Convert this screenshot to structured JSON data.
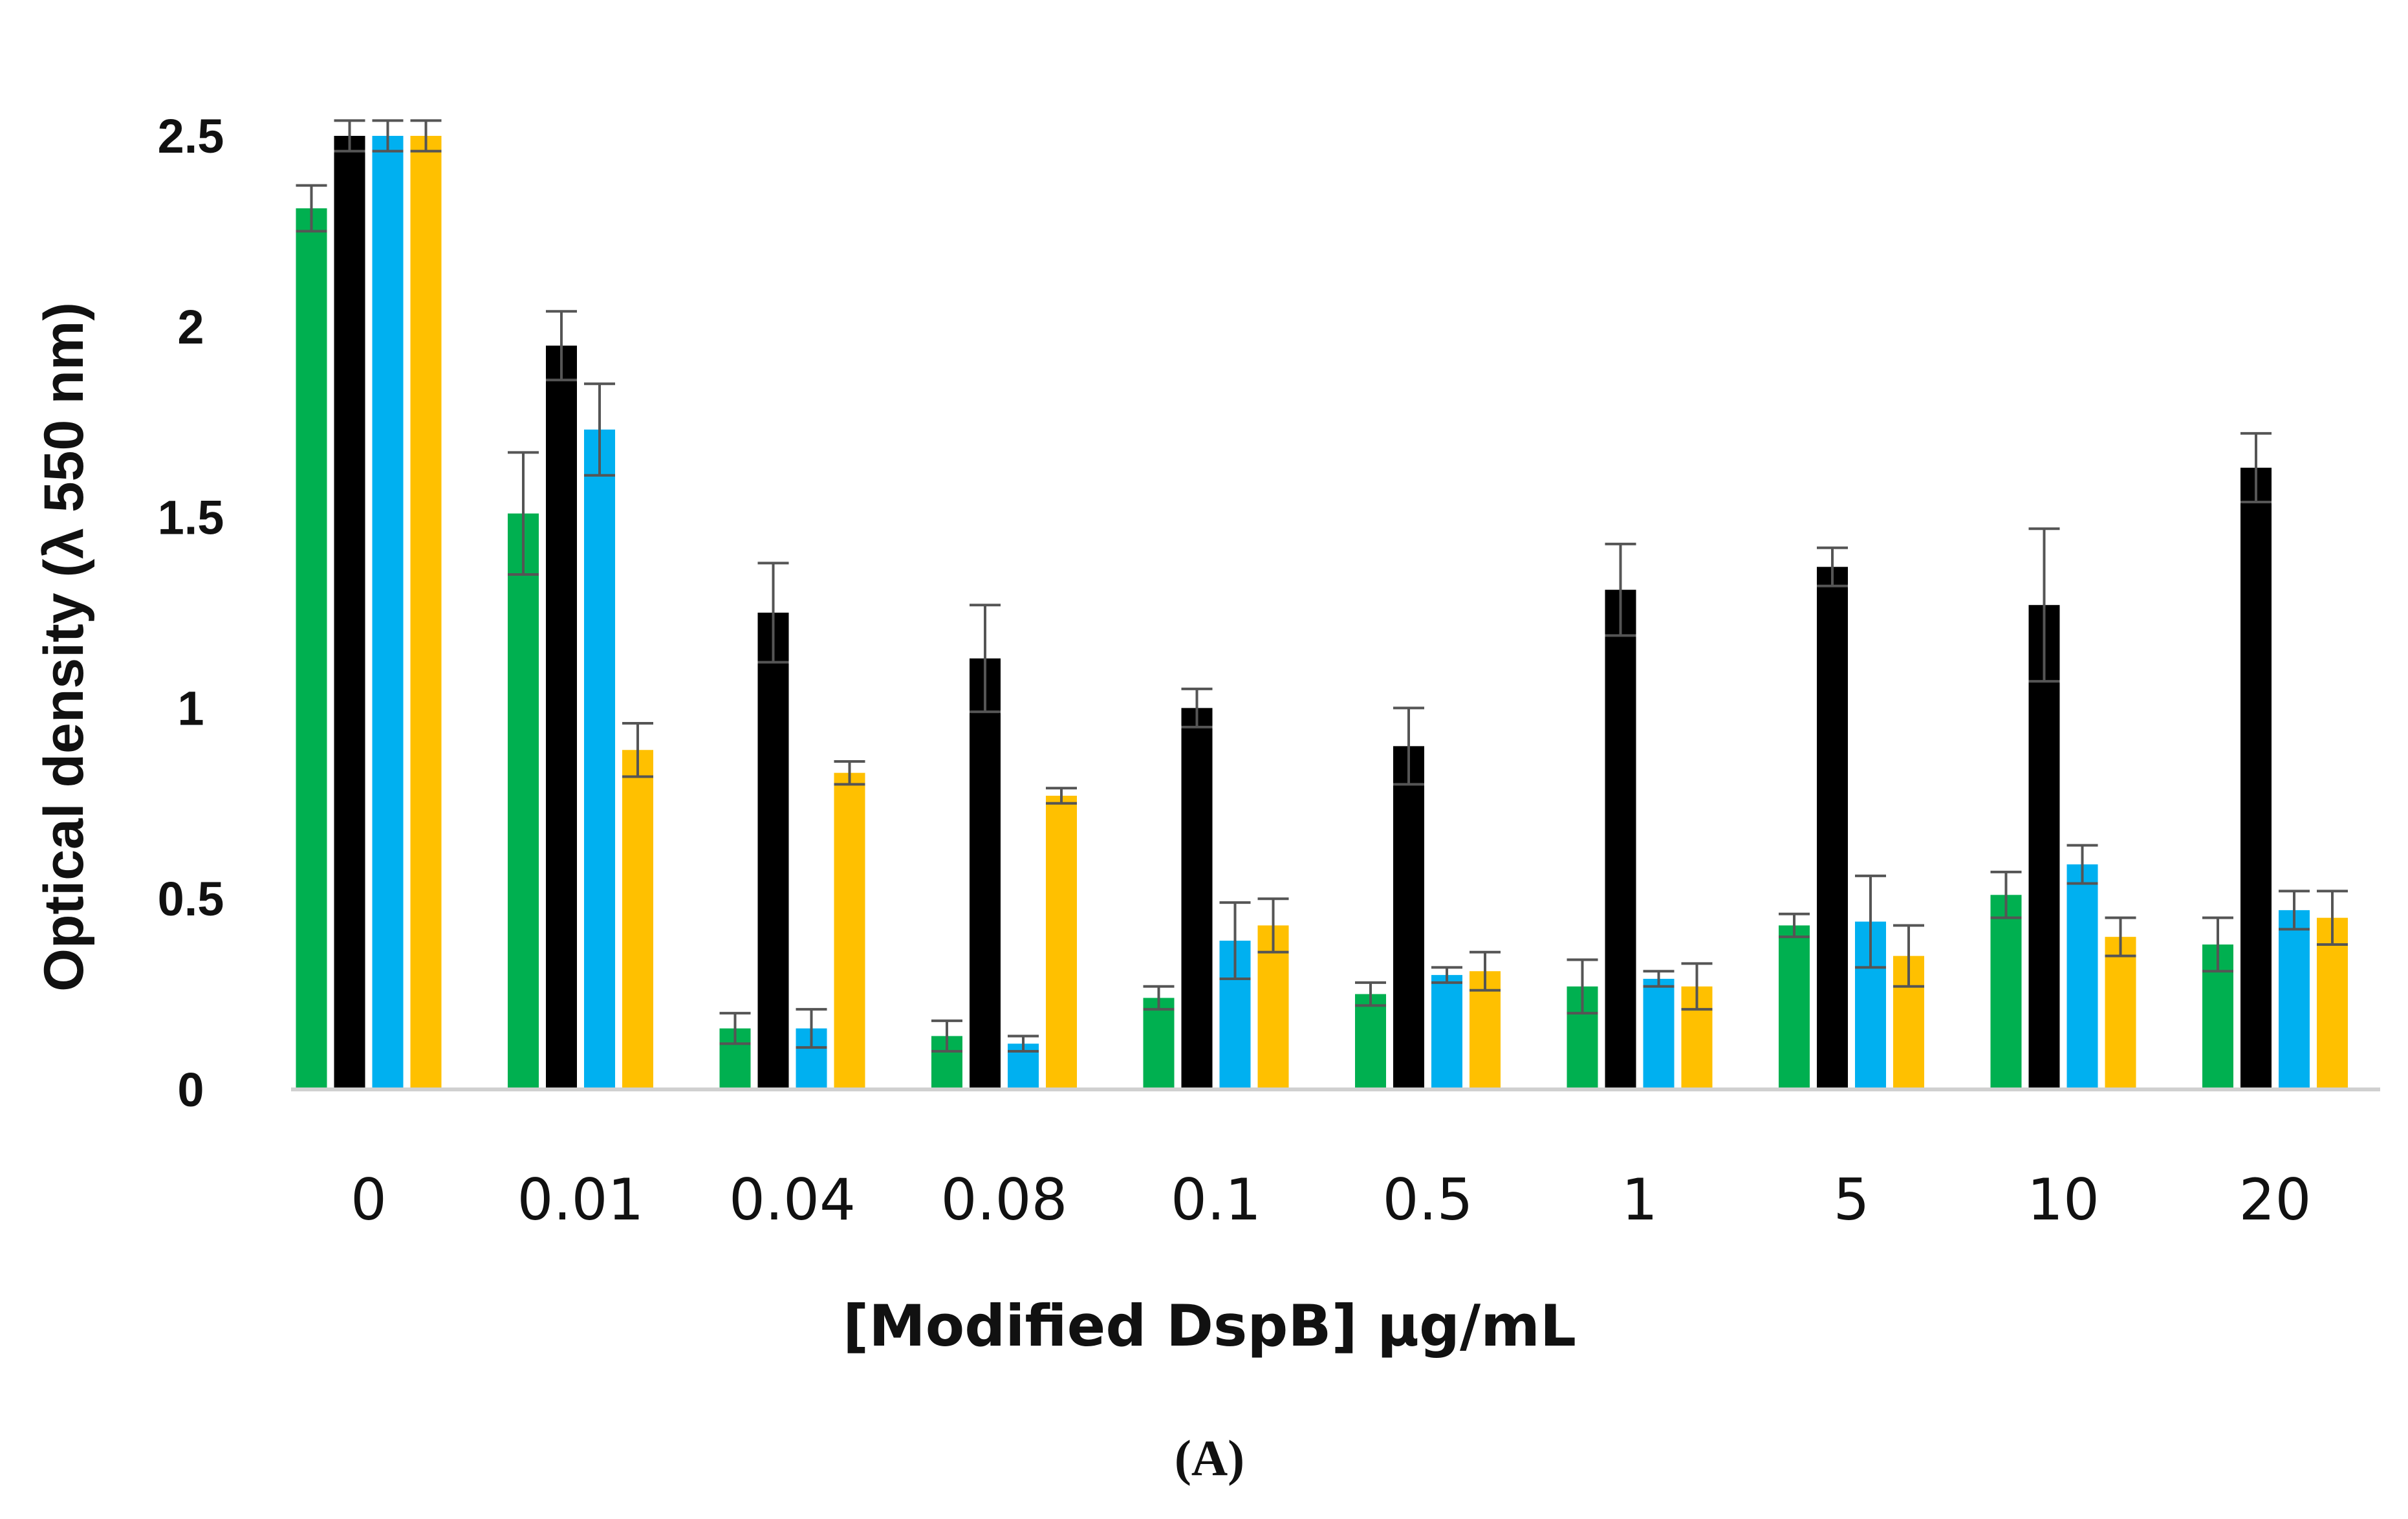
{
  "chart_data": {
    "type": "bar",
    "title": "",
    "panel_label": "(A)",
    "xlabel": "[Modified DspB] μg/mL",
    "ylabel": "Optical density (λ 550 nm)",
    "ylim": [
      0,
      2.5
    ],
    "yticks": [
      "0",
      "0.5",
      "1",
      "1.5",
      "2",
      "2.5"
    ],
    "grid": false,
    "legend": "none",
    "categories": [
      "0",
      "0.01",
      "0.04",
      "0.08",
      "0.1",
      "0.5",
      "1",
      "5",
      "10",
      "20"
    ],
    "series": [
      {
        "name": "green",
        "color": "#00b050",
        "values": [
          2.31,
          1.51,
          0.16,
          0.14,
          0.24,
          0.25,
          0.27,
          0.43,
          0.51,
          0.38
        ],
        "errors": [
          0.06,
          0.16,
          0.04,
          0.04,
          0.03,
          0.03,
          0.07,
          0.03,
          0.06,
          0.07
        ]
      },
      {
        "name": "black",
        "color": "#000000",
        "values": [
          2.5,
          1.95,
          1.25,
          1.13,
          1.0,
          0.9,
          1.31,
          1.37,
          1.27,
          1.63
        ],
        "errors": [
          0.04,
          0.09,
          0.13,
          0.14,
          0.05,
          0.1,
          0.12,
          0.05,
          0.2,
          0.09
        ]
      },
      {
        "name": "blue",
        "color": "#00b0f0",
        "values": [
          2.5,
          1.73,
          0.16,
          0.12,
          0.39,
          0.3,
          0.29,
          0.44,
          0.59,
          0.47
        ],
        "errors": [
          0.04,
          0.12,
          0.05,
          0.02,
          0.1,
          0.02,
          0.02,
          0.12,
          0.05,
          0.05
        ]
      },
      {
        "name": "yellow",
        "color": "#ffc000",
        "values": [
          2.5,
          0.89,
          0.83,
          0.77,
          0.43,
          0.31,
          0.27,
          0.35,
          0.4,
          0.45
        ],
        "errors": [
          0.04,
          0.07,
          0.03,
          0.02,
          0.07,
          0.05,
          0.06,
          0.08,
          0.05,
          0.07
        ]
      }
    ]
  }
}
